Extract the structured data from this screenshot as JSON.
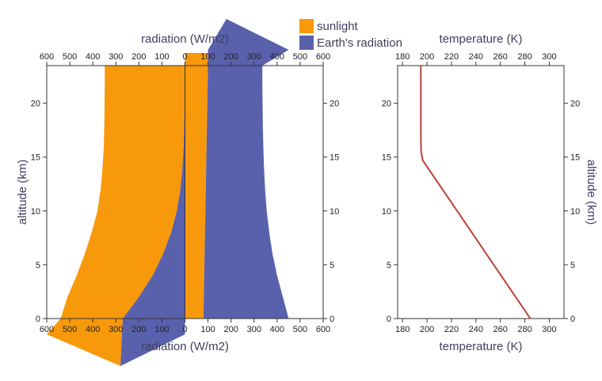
{
  "legend": {
    "items": [
      {
        "label": "sunlight",
        "color": "#f7990b"
      },
      {
        "label": "Earth's radiation",
        "color": "#5961ac"
      }
    ]
  },
  "chart_data": [
    {
      "type": "area",
      "xlabel_top": "radiation (W/m2)",
      "xlabel_bottom": "radiation (W/m2)",
      "ylabel": "altitude (km)",
      "xlim": [
        -600,
        600
      ],
      "xticks": [
        -600,
        -500,
        -400,
        -300,
        -200,
        -100,
        0,
        100,
        200,
        300,
        400,
        500,
        600
      ],
      "xtick_labels": [
        "600",
        "500",
        "400",
        "300",
        "200",
        "100",
        "0",
        "100",
        "200",
        "300",
        "400",
        "500",
        "600"
      ],
      "ylim": [
        0,
        23.5
      ],
      "yticks": [
        0,
        5,
        10,
        15,
        20
      ],
      "ytick_labels": [
        "0",
        "5",
        "10",
        "15",
        "20"
      ],
      "series": [
        {
          "name": "sunlight",
          "color": "#f7990b",
          "description_left_edge": "downward",
          "left_edge": {
            "altitude": [
              0,
              2,
              4,
              6,
              8,
              10,
              12,
              14,
              16,
              18,
              20,
              22,
              23.5
            ],
            "x": [
              -540,
              -510,
              -470,
              -435,
              -405,
              -380,
              -366,
              -358,
              -352,
              -350,
              -349,
              -348,
              -348
            ]
          },
          "right_edge": {
            "altitude": [
              0,
              23.5
            ],
            "x": [
              80,
              100
            ]
          },
          "inner_edge": {
            "altitude": [
              0,
              23.5
            ],
            "x": [
              0,
              0
            ]
          }
        },
        {
          "name": "Earth's radiation",
          "color": "#5961ac",
          "left_edge": {
            "altitude": [
              0,
              2,
              4,
              6,
              8,
              10,
              12,
              14,
              16,
              18,
              20,
              22,
              23.5
            ],
            "x": [
              -270,
              -200,
              -140,
              -95,
              -60,
              -35,
              -20,
              -11,
              -6,
              -3,
              -1,
              0,
              0
            ]
          },
          "right_edge": {
            "altitude": [
              0,
              2,
              4,
              6,
              8,
              10,
              12,
              14,
              16,
              18,
              20,
              22,
              23.5
            ],
            "x": [
              450,
              425,
              400,
              380,
              366,
              355,
              348,
              343,
              340,
              338,
              337,
              336,
              336
            ]
          },
          "inner_edge": {
            "altitude": [
              0,
              23.5
            ],
            "x": [
              80,
              100
            ]
          }
        }
      ],
      "arrows": [
        {
          "series": "sunlight",
          "direction": "down",
          "x_from": -600,
          "x_to": -300,
          "tip_x": -280
        },
        {
          "series": "Earth's radiation",
          "direction": "down",
          "x_from": -300,
          "x_to": 0,
          "tip_x": -280
        },
        {
          "series": "Earth's radiation",
          "direction": "up",
          "x_from": 100,
          "x_to": 450,
          "tip_x": 180
        }
      ]
    },
    {
      "type": "line",
      "xlabel": "temperature (K)",
      "ylabel": "altitude (km)",
      "xlim": [
        176,
        312
      ],
      "xticks": [
        180,
        200,
        220,
        240,
        260,
        280,
        300
      ],
      "xtick_labels": [
        "180",
        "200",
        "220",
        "240",
        "260",
        "280",
        "300"
      ],
      "ylim": [
        0,
        23.5
      ],
      "yticks": [
        0,
        5,
        10,
        15,
        20
      ],
      "ytick_labels": [
        "0",
        "5",
        "10",
        "15",
        "20"
      ],
      "series": [
        {
          "name": "temperature",
          "color": "#b8413a",
          "x": [
            284.5,
            196.5,
            195.2,
            195,
            195
          ],
          "y": [
            0,
            14.7,
            15.5,
            17,
            23.5
          ]
        }
      ]
    }
  ]
}
